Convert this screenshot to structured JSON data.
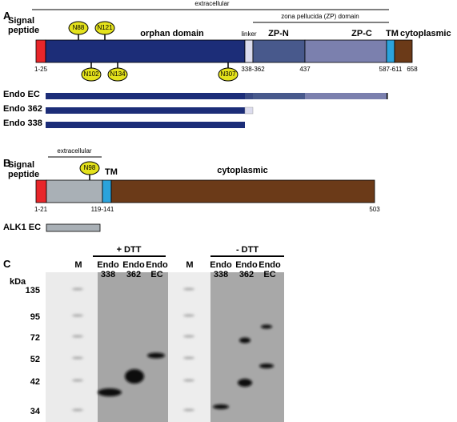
{
  "panel_a": {
    "letter": "A",
    "extracellular": "extracellular",
    "zp_domain": "zona pellucida (ZP) domain",
    "signal_peptide": "Signal peptide",
    "orphan": "orphan domain",
    "linker": "linker",
    "zp_n": "ZP-N",
    "zp_c": "ZP-C",
    "tm": "TM",
    "cytoplasmic": "cytoplasmic",
    "glycosylation": [
      "N88",
      "N121",
      "N102",
      "N134",
      "N307"
    ],
    "positions": [
      "1-25",
      "338-362",
      "437",
      "587-611",
      "658"
    ],
    "constructs": [
      "Endo EC",
      "Endo 362",
      "Endo 338"
    ]
  },
  "panel_b": {
    "letter": "B",
    "extracellular": "extracellular",
    "signal_peptide": "Signal peptide",
    "glycosylation": "N98",
    "tm": "TM",
    "cytoplasmic": "cytoplasmic",
    "positions": [
      "1-21",
      "119-141",
      "503"
    ],
    "construct": "ALK1 EC"
  },
  "panel_c": {
    "letter": "C",
    "plus_dtt": "+ DTT",
    "minus_dtt": "- DTT",
    "lanes": [
      "M",
      "Endo 338",
      "Endo 362",
      "Endo EC",
      "M",
      "Endo 338",
      "Endo 362",
      "Endo EC"
    ],
    "unit": "kDa",
    "markers": [
      135,
      95,
      72,
      52,
      42,
      34
    ]
  }
}
